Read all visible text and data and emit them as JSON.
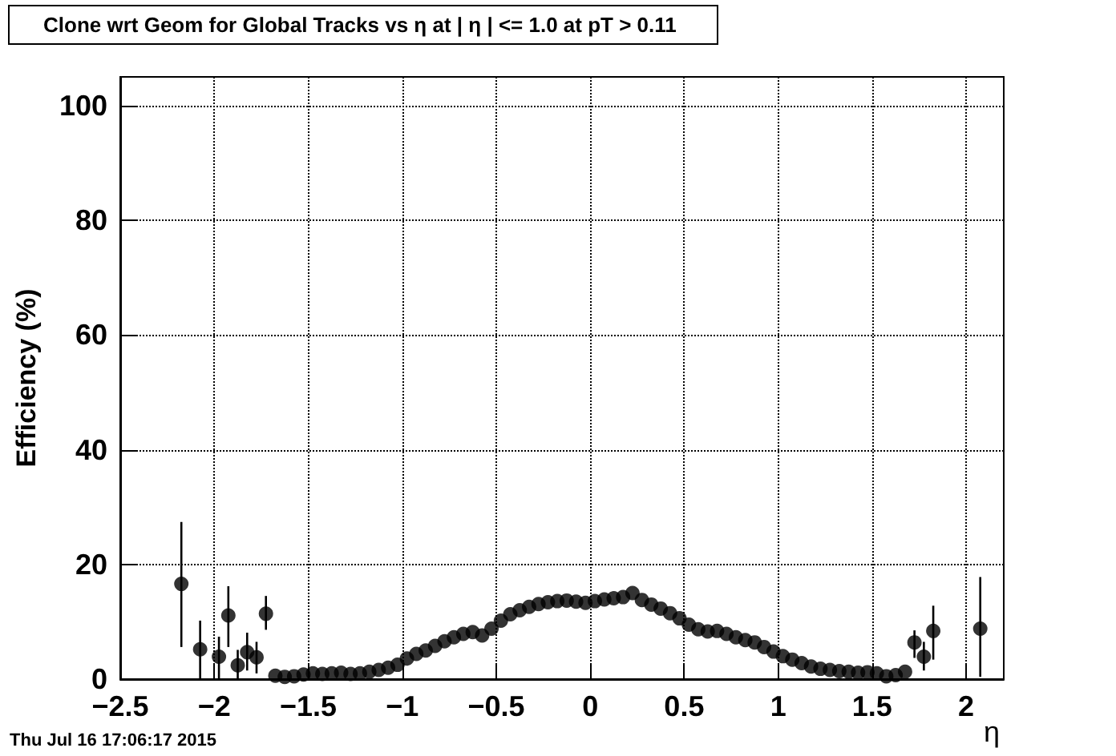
{
  "chart_data": {
    "type": "scatter",
    "title": "Clone wrt Geom for Global Tracks vs η at | η | <= 1.0 at pT > 0.11",
    "xlabel": "η",
    "ylabel": "Efficiency (%)",
    "annotations": [
      "Thu Jul 16 17:06:17 2015"
    ],
    "x": [
      -2.175,
      -2.075,
      -1.975,
      -1.925,
      -1.875,
      -1.825,
      -1.775,
      -1.725,
      -1.675,
      -1.625,
      -1.575,
      -1.525,
      -1.475,
      -1.425,
      -1.375,
      -1.325,
      -1.275,
      -1.225,
      -1.175,
      -1.125,
      -1.075,
      -1.025,
      -0.975,
      -0.925,
      -0.875,
      -0.825,
      -0.775,
      -0.725,
      -0.675,
      -0.625,
      -0.575,
      -0.525,
      -0.475,
      -0.425,
      -0.375,
      -0.325,
      -0.275,
      -0.225,
      -0.175,
      -0.125,
      -0.075,
      -0.025,
      0.025,
      0.075,
      0.125,
      0.175,
      0.225,
      0.275,
      0.325,
      0.375,
      0.425,
      0.475,
      0.525,
      0.575,
      0.625,
      0.675,
      0.725,
      0.775,
      0.825,
      0.875,
      0.925,
      0.975,
      1.025,
      1.075,
      1.125,
      1.175,
      1.225,
      1.275,
      1.325,
      1.375,
      1.425,
      1.475,
      1.525,
      1.575,
      1.625,
      1.675,
      1.725,
      1.775,
      1.825,
      2.075
    ],
    "series": [
      {
        "color": "#000000",
        "values": [
          16.6,
          5.2,
          3.9,
          11.1,
          2.4,
          4.7,
          3.8,
          11.4,
          0.6,
          0.4,
          0.5,
          0.8,
          1.0,
          0.9,
          1.0,
          1.1,
          0.9,
          1.0,
          1.3,
          1.6,
          2.0,
          2.5,
          3.6,
          4.4,
          5.0,
          5.8,
          6.6,
          7.3,
          7.9,
          8.2,
          7.6,
          8.8,
          10.2,
          11.3,
          12.0,
          12.6,
          13.1,
          13.4,
          13.6,
          13.7,
          13.5,
          13.3,
          13.6,
          13.9,
          14.1,
          14.3,
          15.0,
          13.8,
          13.0,
          12.3,
          11.5,
          10.6,
          9.5,
          8.7,
          8.3,
          8.4,
          7.9,
          7.3,
          6.8,
          6.4,
          5.6,
          4.8,
          4.0,
          3.4,
          2.8,
          2.2,
          1.8,
          1.6,
          1.4,
          1.3,
          1.1,
          1.2,
          1.0,
          0.5,
          0.7,
          1.3,
          6.4,
          3.9,
          8.4,
          8.8
        ],
        "errors": [
          [
            5.6,
            27.4
          ],
          [
            0,
            10.2
          ],
          [
            0,
            7.4
          ],
          [
            5.6,
            16.2
          ],
          [
            0,
            5.1
          ],
          [
            1.5,
            8.1
          ],
          [
            1,
            6.5
          ],
          [
            8.6,
            14.5
          ],
          null,
          null,
          null,
          null,
          null,
          null,
          null,
          null,
          null,
          null,
          null,
          null,
          null,
          null,
          null,
          null,
          null,
          null,
          null,
          null,
          null,
          null,
          null,
          null,
          null,
          null,
          null,
          null,
          null,
          null,
          null,
          null,
          null,
          null,
          null,
          null,
          null,
          null,
          null,
          null,
          null,
          null,
          null,
          null,
          null,
          null,
          null,
          null,
          null,
          null,
          null,
          null,
          null,
          null,
          null,
          null,
          null,
          null,
          null,
          null,
          null,
          null,
          null,
          null,
          null,
          null,
          null,
          null,
          [
            3.7,
            8.5
          ],
          [
            1.5,
            6.5
          ],
          [
            3.4,
            12.8
          ],
          [
            0.4,
            17.8
          ]
        ]
      }
    ],
    "xlim": [
      -2.5,
      2.2
    ],
    "xticks": [
      -2.5,
      -2,
      -1.5,
      -1,
      -0.5,
      0,
      0.5,
      1,
      1.5,
      2
    ],
    "ylim": [
      0,
      105
    ],
    "yticks": [
      0,
      20,
      40,
      60,
      80,
      100
    ],
    "grid": true,
    "marker": "circle"
  }
}
